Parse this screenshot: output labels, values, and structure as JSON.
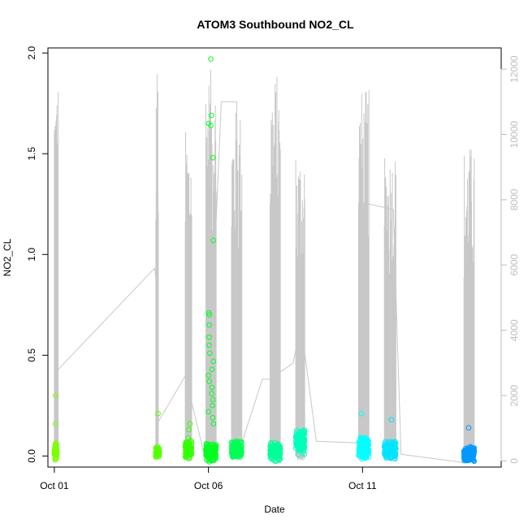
{
  "chart_data": {
    "type": "scatter",
    "title": "ATOM3 Southbound NO2_CL",
    "xlabel": "Date",
    "ylabel": "NO2_CL",
    "xlim": [
      "2015-09-30T19:00",
      "2015-10-15T12:00"
    ],
    "ylim": [
      -0.055,
      2.025
    ],
    "y2lim": [
      -190,
      12650
    ],
    "x_ticks": [
      {
        "value": "2015-10-01",
        "label": "Oct 01"
      },
      {
        "value": "2015-10-06",
        "label": "Oct 06"
      },
      {
        "value": "2015-10-11",
        "label": "Oct 11"
      }
    ],
    "y_ticks": [
      {
        "value": 0.0,
        "label": "0.0"
      },
      {
        "value": 0.5,
        "label": "0.5"
      },
      {
        "value": 1.0,
        "label": "1.0"
      },
      {
        "value": 1.5,
        "label": "1.5"
      },
      {
        "value": 2.0,
        "label": "2.0"
      }
    ],
    "y2_ticks": [
      {
        "value": 0,
        "label": "0"
      },
      {
        "value": 2000,
        "label": "2000"
      },
      {
        "value": 4000,
        "label": "4000"
      },
      {
        "value": 6000,
        "label": "6000"
      },
      {
        "value": 8000,
        "label": "8000"
      },
      {
        "value": 10000,
        "label": "10000"
      },
      {
        "value": 12000,
        "label": "12000"
      }
    ],
    "marker": "open-circle",
    "secondary_line_color": "#c8c8c8",
    "series": [
      {
        "color": "#7FFF00",
        "start": "2015-10-01T00:00",
        "end": "2015-10-01T02:00",
        "median": 0.02,
        "spread": 0.05,
        "max": 0.3,
        "outliers": [
          0.3,
          0.16
        ]
      },
      {
        "color": "#55FF00",
        "start": "2015-10-04T07:00",
        "end": "2015-10-04T10:00",
        "median": 0.02,
        "spread": 0.03,
        "max": 0.21,
        "outliers": [
          0.21
        ]
      },
      {
        "color": "#33FF00",
        "start": "2015-10-05T06:00",
        "end": "2015-10-05T11:00",
        "median": 0.03,
        "spread": 0.05,
        "max": 0.16,
        "outliers": [
          0.16,
          0.13,
          0.09
        ]
      },
      {
        "color": "#00FF22",
        "start": "2015-10-05T22:00",
        "end": "2015-10-06T06:00",
        "median": 0.02,
        "spread": 0.05,
        "max": 1.97,
        "outliers": [
          1.97,
          1.69,
          1.65,
          1.64,
          1.48,
          1.07,
          0.71,
          0.7,
          0.65,
          0.59,
          0.55,
          0.51,
          0.47,
          0.43,
          0.4,
          0.37,
          0.34,
          0.31,
          0.28,
          0.25,
          0.22,
          0.19,
          0.16
        ]
      },
      {
        "color": "#00FF55",
        "start": "2015-10-06T18:00",
        "end": "2015-10-07T02:00",
        "median": 0.03,
        "spread": 0.05,
        "max": 0.09,
        "outliers": []
      },
      {
        "color": "#00FF99",
        "start": "2015-10-08T00:00",
        "end": "2015-10-08T08:00",
        "median": 0.02,
        "spread": 0.05,
        "max": 0.08,
        "outliers": []
      },
      {
        "color": "#00FFBB",
        "start": "2015-10-08T20:00",
        "end": "2015-10-09T03:00",
        "median": 0.07,
        "spread": 0.07,
        "max": 0.15,
        "outliers": []
      },
      {
        "color": "#00FFFF",
        "start": "2015-10-10T21:00",
        "end": "2015-10-11T05:00",
        "median": 0.04,
        "spread": 0.06,
        "max": 0.21,
        "outliers": [
          0.21
        ]
      },
      {
        "color": "#00E5FF",
        "start": "2015-10-11T17:00",
        "end": "2015-10-12T02:00",
        "median": 0.03,
        "spread": 0.05,
        "max": 0.18,
        "outliers": [
          0.18
        ]
      },
      {
        "color": "#0099FF",
        "start": "2015-10-14T07:00",
        "end": "2015-10-14T15:00",
        "median": 0.01,
        "spread": 0.04,
        "max": 0.14,
        "outliers": [
          0.14
        ]
      }
    ],
    "secondary_series": [
      {
        "start": "2015-10-01T00:00",
        "end": "2015-10-01T03:00",
        "peak": 12000
      },
      {
        "start": "2015-10-04T07:00",
        "end": "2015-10-04T09:00",
        "peak": 12300
      },
      {
        "start": "2015-10-05T06:00",
        "end": "2015-10-05T11:00",
        "peak": 10200
      },
      {
        "start": "2015-10-05T22:00",
        "end": "2015-10-06T06:00",
        "peak": 12000
      },
      {
        "start": "2015-10-06T18:00",
        "end": "2015-10-07T02:00",
        "peak": 10800
      },
      {
        "start": "2015-10-08T00:00",
        "end": "2015-10-08T08:00",
        "peak": 11900
      },
      {
        "start": "2015-10-08T20:00",
        "end": "2015-10-09T03:00",
        "peak": 9600
      },
      {
        "start": "2015-10-10T21:00",
        "end": "2015-10-11T05:00",
        "peak": 11400
      },
      {
        "start": "2015-10-11T17:00",
        "end": "2015-10-12T02:00",
        "peak": 9600
      },
      {
        "start": "2015-10-14T07:00",
        "end": "2015-10-14T15:00",
        "peak": 9700
      }
    ],
    "secondary_connectors": [
      [
        "2015-10-01T03:00",
        2800
      ],
      [
        "2015-10-04T06:00",
        5900
      ],
      [
        "2015-10-04T07:30",
        5500
      ],
      [
        "2015-10-04T09:00",
        1200
      ],
      [
        "2015-10-05T06:00",
        2600
      ],
      [
        "2015-10-05T22:00",
        0
      ],
      [
        "2015-10-06T10:00",
        11000
      ],
      [
        "2015-10-06T22:00",
        11000
      ],
      [
        "2015-10-07T00:00",
        300
      ],
      [
        "2015-10-07T18:00",
        2500
      ],
      [
        "2015-10-08T00:00",
        2500
      ],
      [
        "2015-10-08T18:00",
        3000
      ],
      [
        "2015-10-09T00:00",
        4200
      ],
      [
        "2015-10-09T12:00",
        600
      ],
      [
        "2015-10-10T21:00",
        550
      ],
      [
        "2015-10-11T01:00",
        7900
      ],
      [
        "2015-10-12T00:00",
        7700
      ],
      [
        "2015-10-12T06:00",
        200
      ],
      [
        "2015-10-14T07:00",
        -50
      ]
    ],
    "grid": false,
    "legend": "none"
  }
}
